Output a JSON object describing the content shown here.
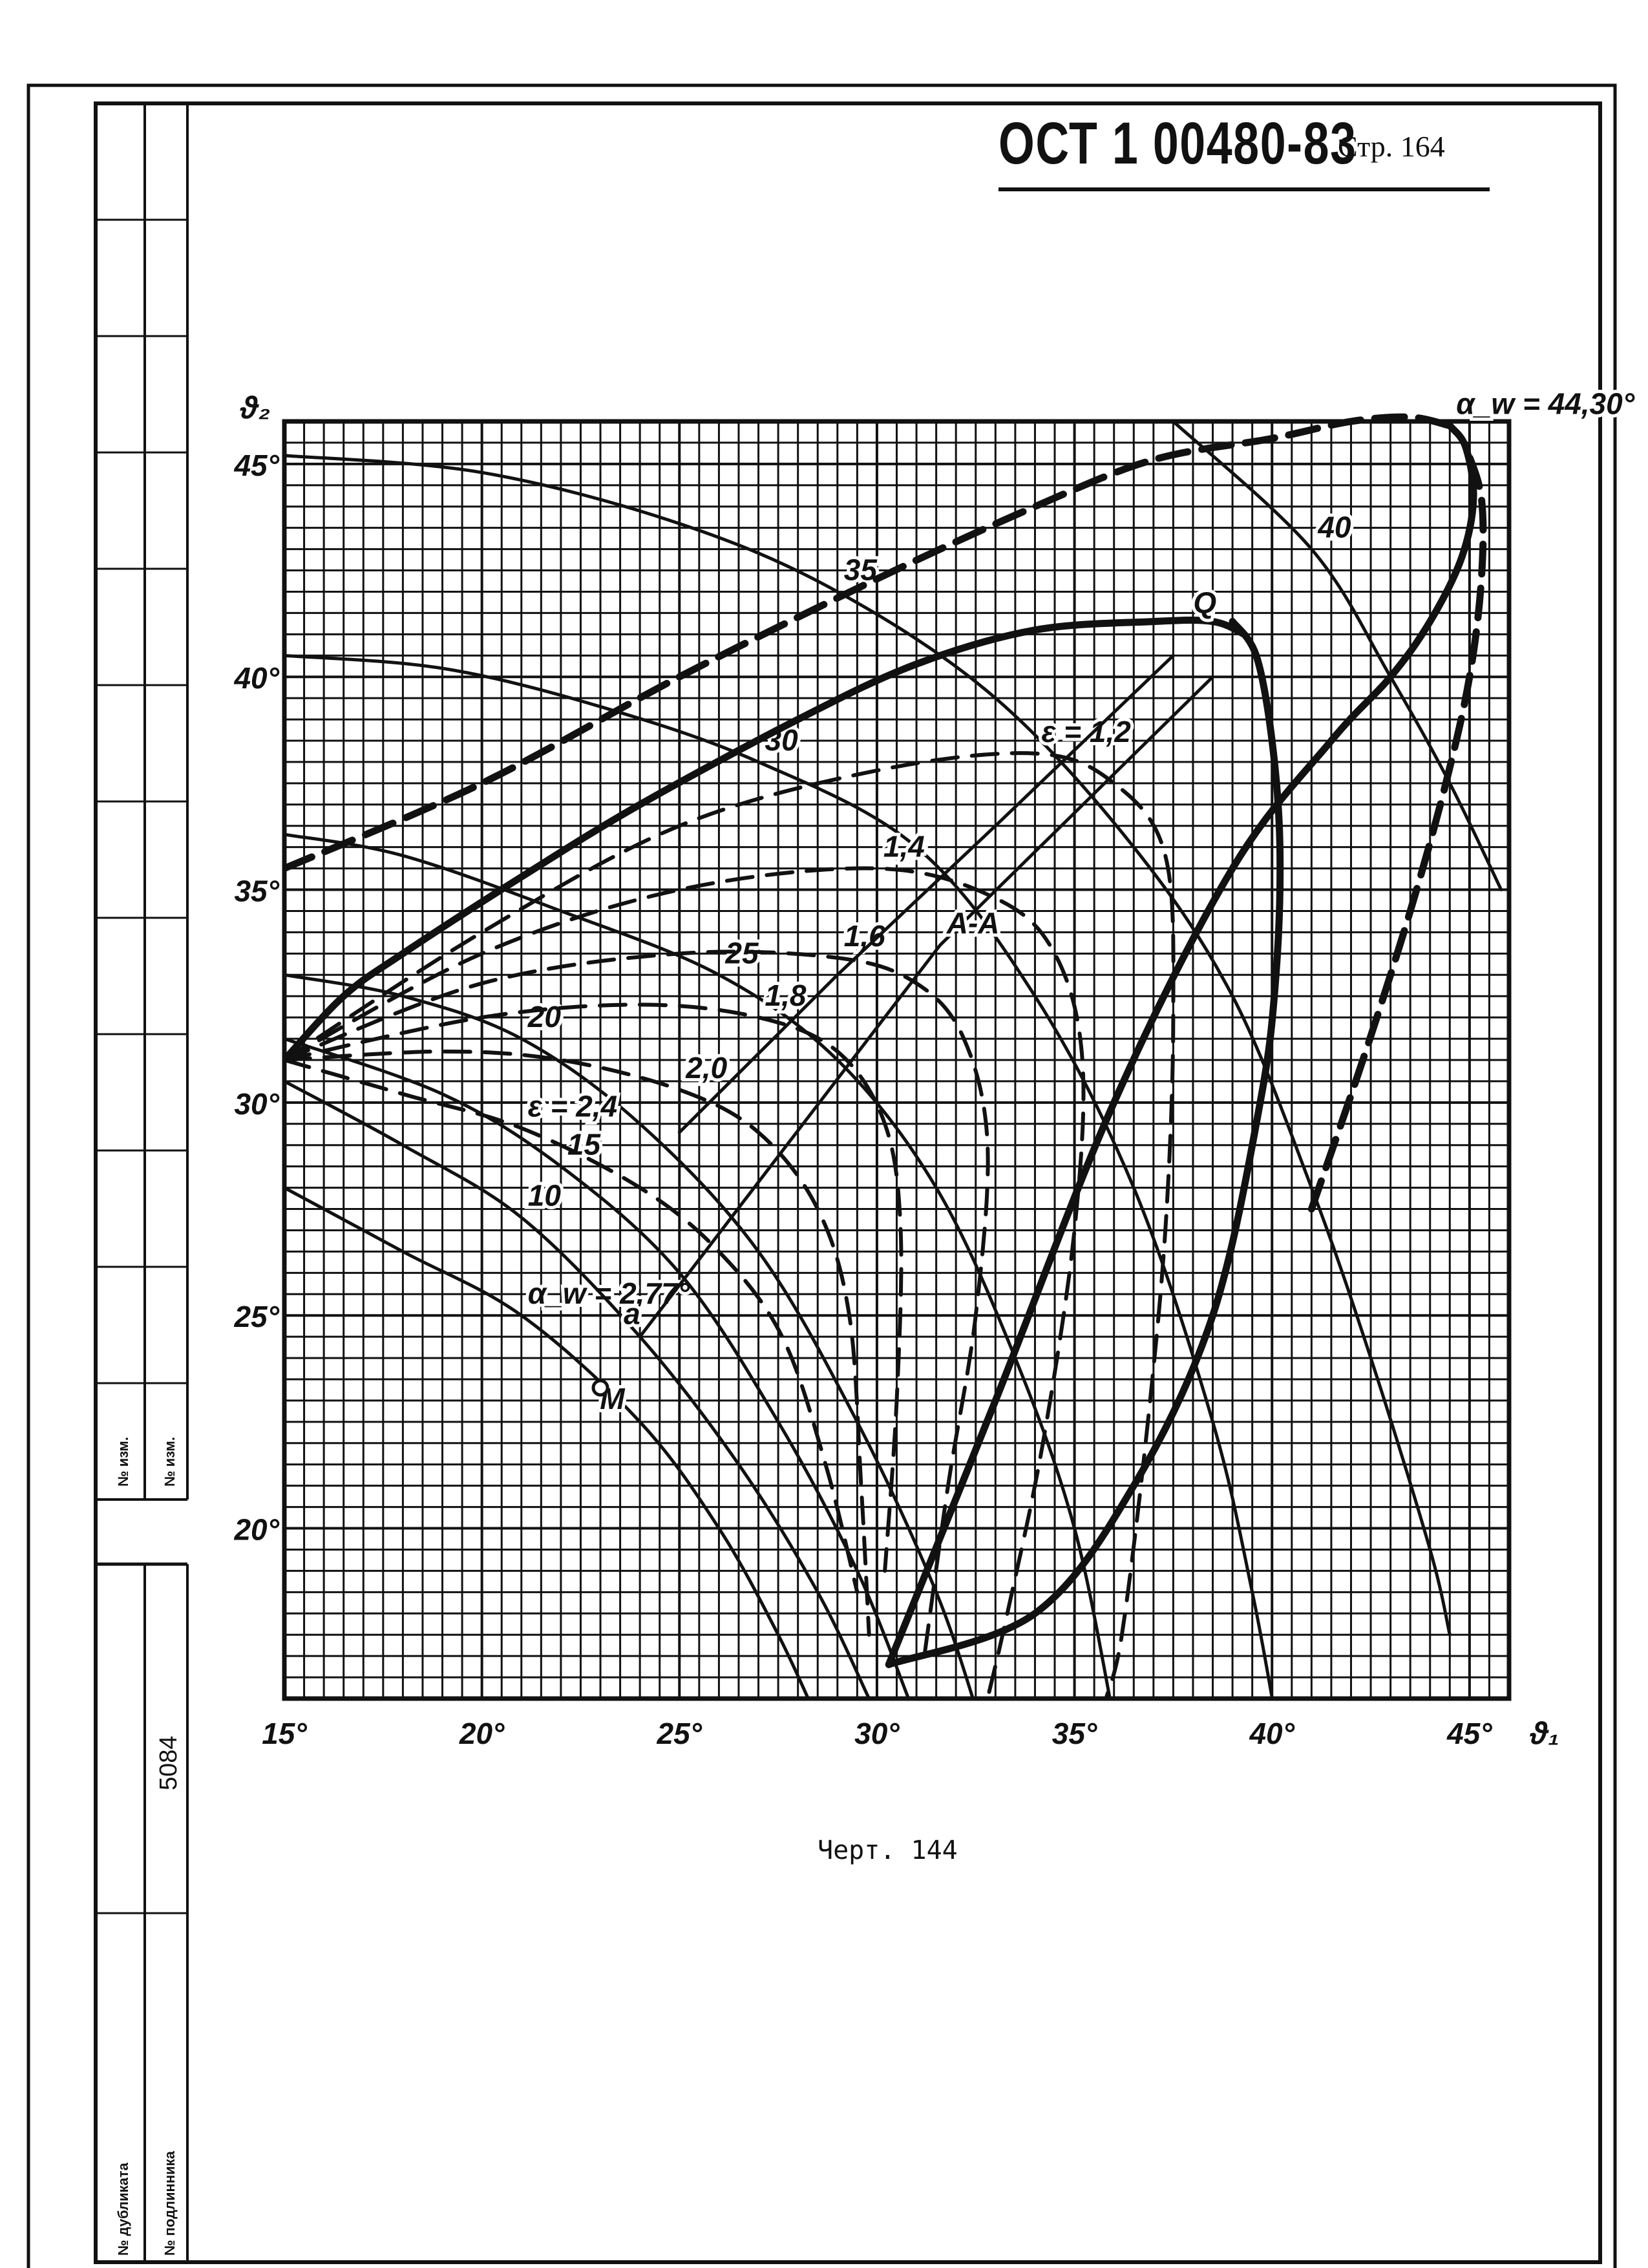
{
  "header": {
    "doc_code": "ОСТ 1 00480-83",
    "page_label": "Стр. 164"
  },
  "caption": "Черт. 144",
  "margin": {
    "labels": [
      "№ изм.",
      "№ изм.",
      "№ дубликата",
      "№ подлинника"
    ],
    "sheet_number": "5084"
  },
  "chart_data": {
    "type": "line",
    "x_axis": {
      "range": [
        15,
        46
      ],
      "ticks": [
        15,
        20,
        25,
        30,
        35,
        40,
        45
      ],
      "tick_labels": [
        "15°",
        "20°",
        "25°",
        "30°",
        "35°",
        "40°",
        "45°"
      ],
      "label": "ϑ₁"
    },
    "y_axis": {
      "range": [
        16,
        46
      ],
      "ticks": [
        20,
        25,
        30,
        35,
        40,
        45
      ],
      "tick_labels": [
        "20°",
        "25°",
        "30°",
        "35°",
        "40°",
        "45°"
      ],
      "label": "ϑ₂"
    },
    "grid": true,
    "series": [
      {
        "name": "α_w = 2,77°",
        "style": "thin",
        "points": [
          [
            15,
            28
          ],
          [
            18,
            26.5
          ],
          [
            21,
            25
          ],
          [
            24,
            22.5
          ],
          [
            26,
            20
          ],
          [
            27.5,
            17.5
          ],
          [
            28.5,
            15.5
          ]
        ]
      },
      {
        "name": "10",
        "style": "thin",
        "points": [
          [
            15,
            30.5
          ],
          [
            18,
            29
          ],
          [
            21,
            27.3
          ],
          [
            24,
            24.5
          ],
          [
            26.5,
            21.5
          ],
          [
            28.5,
            18.5
          ],
          [
            29.8,
            16
          ]
        ]
      },
      {
        "name": "15",
        "style": "thin",
        "points": [
          [
            15,
            31.5
          ],
          [
            19,
            30.2
          ],
          [
            22,
            28.5
          ],
          [
            25,
            26
          ],
          [
            27.5,
            22.5
          ],
          [
            29.5,
            19
          ],
          [
            30.8,
            16
          ]
        ]
      },
      {
        "name": "20",
        "style": "thin",
        "points": [
          [
            15,
            33
          ],
          [
            18,
            32.5
          ],
          [
            21,
            31.5
          ],
          [
            24,
            29.5
          ],
          [
            27,
            26.5
          ],
          [
            29.5,
            22.5
          ],
          [
            31.5,
            18.5
          ],
          [
            32.6,
            15.5
          ]
        ]
      },
      {
        "name": "25",
        "style": "thin",
        "points": [
          [
            15,
            36.3
          ],
          [
            18,
            35.8
          ],
          [
            22,
            34.5
          ],
          [
            26,
            33
          ],
          [
            29,
            31
          ],
          [
            31.5,
            28
          ],
          [
            33.5,
            24
          ],
          [
            35,
            20
          ],
          [
            36,
            15.5
          ]
        ]
      },
      {
        "name": "30",
        "style": "thin",
        "points": [
          [
            15,
            40.5
          ],
          [
            19,
            40.2
          ],
          [
            23,
            39.3
          ],
          [
            27,
            38
          ],
          [
            31,
            36
          ],
          [
            34,
            32.5
          ],
          [
            36.5,
            28
          ],
          [
            38.5,
            22.5
          ],
          [
            39.5,
            18.5
          ],
          [
            40.1,
            15.5
          ]
        ]
      },
      {
        "name": "35",
        "style": "thin",
        "points": [
          [
            15,
            45.2
          ],
          [
            20,
            44.8
          ],
          [
            25,
            43.6
          ],
          [
            29,
            42
          ],
          [
            33,
            39.5
          ],
          [
            36.5,
            36
          ],
          [
            39,
            32.5
          ],
          [
            41,
            28
          ],
          [
            42.5,
            24
          ],
          [
            44,
            19.5
          ],
          [
            44.5,
            17.5
          ]
        ]
      },
      {
        "name": "40",
        "style": "thin",
        "points": [
          [
            37.5,
            46
          ],
          [
            41,
            43
          ],
          [
            43,
            40
          ],
          [
            44.5,
            37.5
          ],
          [
            45.8,
            35
          ]
        ]
      },
      {
        "name": "α_w = 44,30°",
        "style": "thick",
        "points": [
          [
            30.3,
            16.8
          ],
          [
            33,
            23
          ],
          [
            36,
            30
          ],
          [
            39,
            35.5
          ],
          [
            41.5,
            38.5
          ],
          [
            43,
            40
          ],
          [
            44,
            41.3
          ],
          [
            44.8,
            42.8
          ],
          [
            45.1,
            44.2
          ],
          [
            44.9,
            45.4
          ],
          [
            44.5,
            45.9
          ]
        ]
      },
      {
        "name": "",
        "style": "thick",
        "points": [
          [
            30.3,
            16.8
          ],
          [
            34,
            18
          ],
          [
            36.5,
            21
          ],
          [
            38.5,
            25
          ],
          [
            39.7,
            30
          ],
          [
            40.1,
            33
          ],
          [
            40.2,
            36
          ],
          [
            40,
            38.5
          ],
          [
            39.6,
            40.5
          ],
          [
            39,
            41.3
          ]
        ]
      },
      {
        "name": "",
        "style": "thick",
        "points": [
          [
            15,
            31
          ],
          [
            16.5,
            32.5
          ],
          [
            18,
            33.5
          ],
          [
            21,
            35.3
          ],
          [
            24,
            37
          ],
          [
            28,
            39
          ],
          [
            31,
            40.3
          ],
          [
            34,
            41.1
          ],
          [
            37,
            41.3
          ],
          [
            38.5,
            41.3
          ],
          [
            39.3,
            41
          ]
        ]
      },
      {
        "name": "",
        "style": "thick-dashed",
        "points": [
          [
            15,
            35.5
          ],
          [
            20,
            37.5
          ],
          [
            25,
            40
          ],
          [
            30,
            42.3
          ],
          [
            34,
            44
          ],
          [
            37,
            45.1
          ],
          [
            40,
            45.6
          ],
          [
            42,
            46
          ],
          [
            43.5,
            46.1
          ],
          [
            44.5,
            45.9
          ]
        ]
      },
      {
        "name": "",
        "style": "thick-dashed",
        "points": [
          [
            41,
            27.5
          ],
          [
            42.3,
            31
          ],
          [
            43.5,
            34.5
          ],
          [
            44.4,
            37.5
          ],
          [
            45,
            40
          ],
          [
            45.3,
            42.3
          ],
          [
            45.3,
            44.2
          ],
          [
            44.9,
            45.4
          ]
        ]
      },
      {
        "name": "ε = 1,2",
        "style": "dashed",
        "points": [
          [
            15,
            31
          ],
          [
            20,
            34
          ],
          [
            25,
            36.5
          ],
          [
            30,
            37.8
          ],
          [
            34,
            38.2
          ],
          [
            36,
            37.5
          ],
          [
            37.3,
            35.8
          ],
          [
            37.5,
            32
          ],
          [
            37.3,
            27
          ],
          [
            36.8,
            22
          ],
          [
            36.2,
            17.5
          ],
          [
            35.8,
            16
          ]
        ]
      },
      {
        "name": "1,4",
        "style": "dashed",
        "points": [
          [
            15,
            31
          ],
          [
            20,
            33.5
          ],
          [
            25,
            35
          ],
          [
            30,
            35.5
          ],
          [
            33,
            34.8
          ],
          [
            34.5,
            33.5
          ],
          [
            35.2,
            31
          ],
          [
            35,
            27
          ],
          [
            34.2,
            22
          ],
          [
            33.3,
            18
          ],
          [
            32.8,
            16
          ]
        ]
      },
      {
        "name": "1,6",
        "style": "dashed",
        "points": [
          [
            15,
            31
          ],
          [
            20,
            32.8
          ],
          [
            25,
            33.5
          ],
          [
            29,
            33.4
          ],
          [
            31,
            32.8
          ],
          [
            32.2,
            31.5
          ],
          [
            32.8,
            29
          ],
          [
            32.5,
            25
          ],
          [
            31.8,
            21
          ],
          [
            31.2,
            17
          ]
        ]
      },
      {
        "name": "1,8",
        "style": "dashed",
        "points": [
          [
            15,
            31
          ],
          [
            20,
            32
          ],
          [
            24,
            32.3
          ],
          [
            27,
            32
          ],
          [
            29,
            31.2
          ],
          [
            30.2,
            29.5
          ],
          [
            30.6,
            27
          ],
          [
            30.5,
            23
          ],
          [
            30.2,
            19
          ]
        ]
      },
      {
        "name": "2,0",
        "style": "dashed",
        "points": [
          [
            15,
            31
          ],
          [
            19,
            31.2
          ],
          [
            22,
            31
          ],
          [
            25,
            30.3
          ],
          [
            27,
            29.3
          ],
          [
            28.5,
            27.5
          ],
          [
            29.3,
            25
          ],
          [
            29.6,
            21
          ],
          [
            29.8,
            17.5
          ]
        ]
      },
      {
        "name": "ε = 2,4",
        "style": "dashed",
        "points": [
          [
            15,
            31
          ],
          [
            18,
            30.2
          ],
          [
            21,
            29.4
          ],
          [
            24,
            28
          ],
          [
            26,
            26.5
          ],
          [
            27.6,
            24.5
          ],
          [
            28.7,
            21.5
          ],
          [
            29.5,
            18.5
          ]
        ]
      },
      {
        "name": "A-A",
        "style": "thin-straight",
        "points": [
          [
            24,
            24.5
          ],
          [
            31.6,
            33.7
          ],
          [
            38.5,
            40
          ]
        ]
      },
      {
        "name": "",
        "style": "thin-straight",
        "points": [
          [
            25,
            29.3
          ],
          [
            29,
            33
          ],
          [
            33,
            36.5
          ],
          [
            37.5,
            40.5
          ]
        ]
      }
    ],
    "annotations": [
      {
        "text": "Q",
        "x": 38.3,
        "y": 41.5
      },
      {
        "text": "M",
        "x": 23.3,
        "y": 22.8
      },
      {
        "text": "a",
        "x": 23.8,
        "y": 24.8
      }
    ]
  }
}
